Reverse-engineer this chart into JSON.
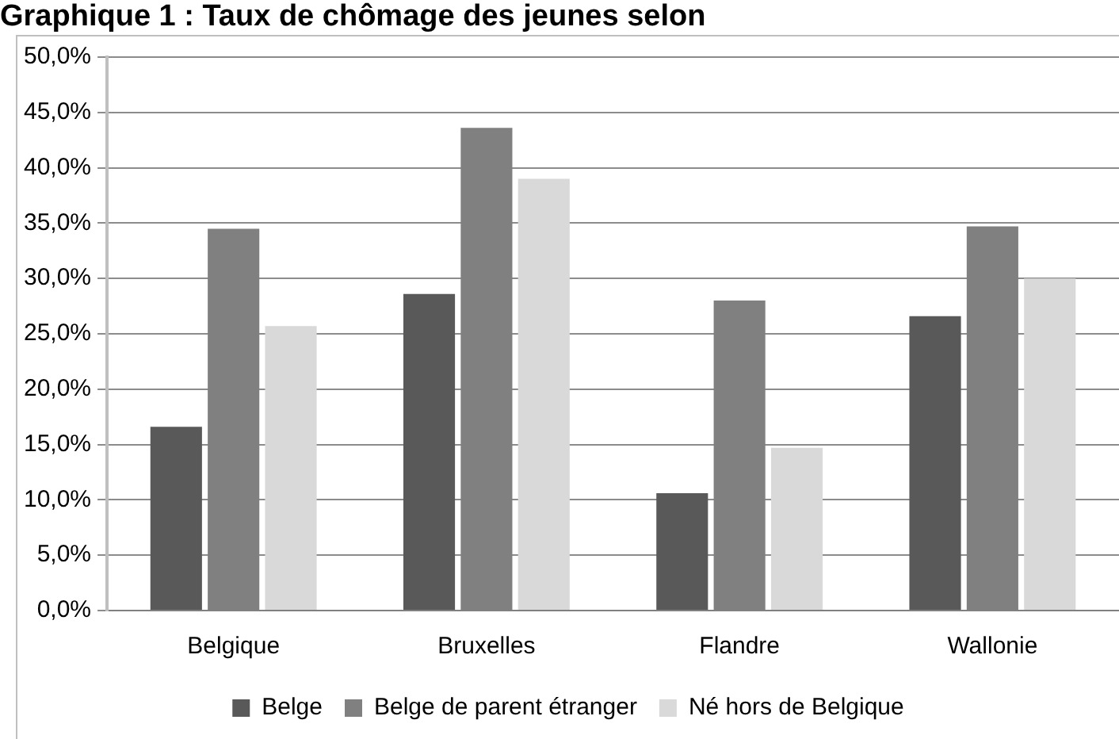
{
  "chart_data": {
    "type": "bar",
    "title": "Graphique 1 : Taux de chômage des jeunes selon",
    "categories": [
      "Belgique",
      "Bruxelles",
      "Flandre",
      "Wallonie"
    ],
    "series": [
      {
        "name": "Belge",
        "color": "#595959",
        "values": [
          16.6,
          28.6,
          10.6,
          26.6
        ]
      },
      {
        "name": "Belge de parent étranger",
        "color": "#808080",
        "values": [
          34.5,
          43.6,
          28.0,
          34.7
        ]
      },
      {
        "name": "Né hors de Belgique",
        "color": "#d9d9d9",
        "values": [
          25.7,
          39.0,
          14.7,
          30.0
        ]
      }
    ],
    "ylim": [
      0,
      50
    ],
    "yticks": [
      {
        "value": 0,
        "label": "0,0%"
      },
      {
        "value": 5,
        "label": "5,0%"
      },
      {
        "value": 10,
        "label": "10,0%"
      },
      {
        "value": 15,
        "label": "15,0%"
      },
      {
        "value": 20,
        "label": "20,0%"
      },
      {
        "value": 25,
        "label": "25,0%"
      },
      {
        "value": 30,
        "label": "30,0%"
      },
      {
        "value": 35,
        "label": "35,0%"
      },
      {
        "value": 40,
        "label": "40,0%"
      },
      {
        "value": 45,
        "label": "45,0%"
      },
      {
        "value": 50,
        "label": "50,0%"
      }
    ],
    "grid": "y",
    "legend": "bottom"
  }
}
